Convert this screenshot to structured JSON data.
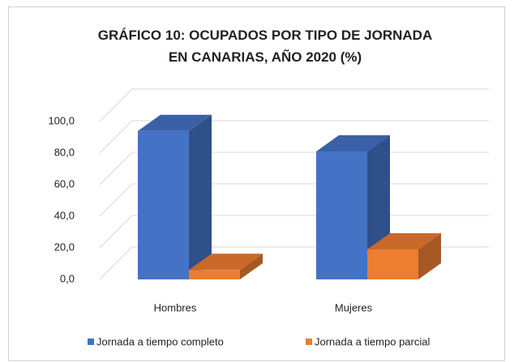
{
  "chart_data": {
    "type": "bar3d",
    "title": "GRÁFICO 10: OCUPADOS POR TIPO DE JORNADA EN CANARIAS, AÑO 2020 (%)",
    "categories": [
      "Hombres",
      "Mujeres"
    ],
    "series": [
      {
        "name": "Jornada a tiempo completo",
        "color": "#4472c4",
        "values": [
          94.0,
          81.0
        ]
      },
      {
        "name": "Jornada a tiempo parcial",
        "color": "#ed7d31",
        "values": [
          6.0,
          19.0
        ]
      }
    ],
    "ylim": [
      0,
      100
    ],
    "yticks": [
      {
        "value": 0,
        "label": "0,0"
      },
      {
        "value": 20,
        "label": "20,0"
      },
      {
        "value": 40,
        "label": "40,0"
      },
      {
        "value": 60,
        "label": "60,0"
      },
      {
        "value": 80,
        "label": "80,0"
      },
      {
        "value": 100,
        "label": "100,0"
      }
    ],
    "grid": true,
    "legend": "bottom"
  }
}
